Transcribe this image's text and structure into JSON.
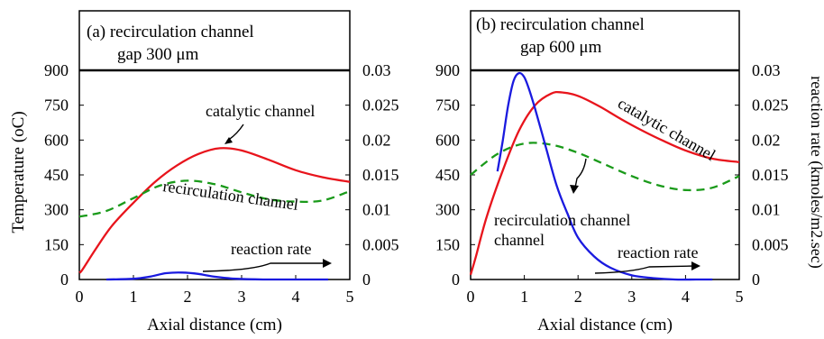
{
  "colors": {
    "temperature_catalytic": "#e8141c",
    "temperature_recirculation": "#1a9a1a",
    "reaction_rate": "#1a1adf",
    "axis": "#000000"
  },
  "shared": {
    "ylabel_left": "Temperature (oC)",
    "ylabel_right": "reaction rate (kmoles/m2.sec)"
  },
  "chart_data": [
    {
      "type": "line",
      "title_line1": "(a) recirculation channel",
      "title_line2": "gap 300 μm",
      "xlabel": "Axial distance (cm)",
      "ylabel": "Temperature (oC)",
      "y2label": "",
      "xlim": [
        0,
        5
      ],
      "ylim": [
        0,
        900
      ],
      "y2lim": [
        0,
        0.03
      ],
      "x_ticks": [
        "0",
        "1",
        "2",
        "3",
        "4",
        "5"
      ],
      "y_ticks": [
        "0",
        "150",
        "300",
        "450",
        "600",
        "750",
        "900"
      ],
      "y2_ticks": [
        "0",
        "0.005",
        "0.01",
        "0.015",
        "0.02",
        "0.025",
        "0.03"
      ],
      "series": [
        {
          "name": "catalytic channel",
          "axis": "left",
          "style": "solid",
          "color": "#e8141c",
          "x": [
            0,
            0.05,
            0.3,
            0.6,
            1.0,
            1.4,
            1.8,
            2.2,
            2.6,
            3.0,
            3.5,
            4.0,
            4.5,
            5.0
          ],
          "y": [
            30,
            40,
            130,
            230,
            330,
            420,
            490,
            540,
            565,
            555,
            515,
            470,
            440,
            420
          ]
        },
        {
          "name": "recirculation channel",
          "axis": "left",
          "style": "dashed",
          "color": "#1a9a1a",
          "x": [
            0,
            0.5,
            1.0,
            1.5,
            2.0,
            2.5,
            3.0,
            3.5,
            4.0,
            4.5,
            5.0
          ],
          "y": [
            270,
            295,
            350,
            405,
            425,
            410,
            375,
            345,
            335,
            340,
            380
          ]
        },
        {
          "name": "reaction rate",
          "axis": "right",
          "style": "solid",
          "color": "#1a1adf",
          "x": [
            0.5,
            1.0,
            1.3,
            1.6,
            1.9,
            2.2,
            2.5,
            2.9,
            3.4,
            4.0,
            4.6
          ],
          "y": [
            0.0,
            0.0001,
            0.0004,
            0.0009,
            0.001,
            0.0008,
            0.0004,
            0.0001,
            0.0,
            0.0,
            0.0
          ]
        }
      ],
      "annotations": [
        {
          "text": "catalytic channel"
        },
        {
          "text": "recirculation channel"
        },
        {
          "text": "reaction rate"
        }
      ]
    },
    {
      "type": "line",
      "title_line1": "(b) recirculation channel",
      "title_line2": "gap 600 μm",
      "xlabel": "Axial distance (cm)",
      "ylabel": "",
      "y2label": "reaction rate (kmoles/m2.sec)",
      "xlim": [
        0,
        5
      ],
      "ylim": [
        0,
        900
      ],
      "y2lim": [
        0,
        0.03
      ],
      "x_ticks": [
        "0",
        "1",
        "2",
        "3",
        "4",
        "5"
      ],
      "y_ticks": [
        "0",
        "150",
        "300",
        "450",
        "600",
        "750",
        "900"
      ],
      "y2_ticks": [
        "0",
        "0.005",
        "0.01",
        "0.015",
        "0.02",
        "0.025",
        "0.03"
      ],
      "series": [
        {
          "name": "catalytic channel",
          "axis": "left",
          "style": "solid",
          "color": "#e8141c",
          "x": [
            0,
            0.1,
            0.3,
            0.6,
            0.9,
            1.2,
            1.5,
            1.7,
            2.0,
            2.4,
            2.8,
            3.2,
            3.6,
            4.0,
            4.5,
            5.0
          ],
          "y": [
            20,
            100,
            270,
            470,
            640,
            750,
            800,
            805,
            790,
            745,
            690,
            640,
            595,
            555,
            520,
            505
          ]
        },
        {
          "name": "recirculation channel",
          "axis": "left",
          "style": "dashed",
          "color": "#1a9a1a",
          "x": [
            0,
            0.5,
            1.0,
            1.5,
            2.0,
            2.5,
            3.0,
            3.5,
            4.0,
            4.5,
            5.0
          ],
          "y": [
            450,
            540,
            585,
            580,
            545,
            495,
            445,
            405,
            385,
            395,
            445
          ]
        },
        {
          "name": "reaction rate",
          "axis": "right",
          "style": "solid",
          "color": "#1a1adf",
          "x": [
            0.5,
            0.6,
            0.7,
            0.8,
            0.9,
            1.0,
            1.1,
            1.2,
            1.4,
            1.6,
            1.8,
            2.0,
            2.3,
            2.6,
            3.0,
            3.4,
            3.8,
            4.2,
            4.5
          ],
          "y": [
            0.0155,
            0.02,
            0.025,
            0.0285,
            0.0296,
            0.029,
            0.027,
            0.0245,
            0.019,
            0.0135,
            0.0095,
            0.006,
            0.0033,
            0.0017,
            0.0006,
            0.0002,
            0.0,
            0.0,
            0.0
          ]
        }
      ],
      "annotations": [
        {
          "text": "catalytic channel"
        },
        {
          "text": "recirculation channel"
        },
        {
          "text": "reaction rate"
        }
      ]
    }
  ]
}
